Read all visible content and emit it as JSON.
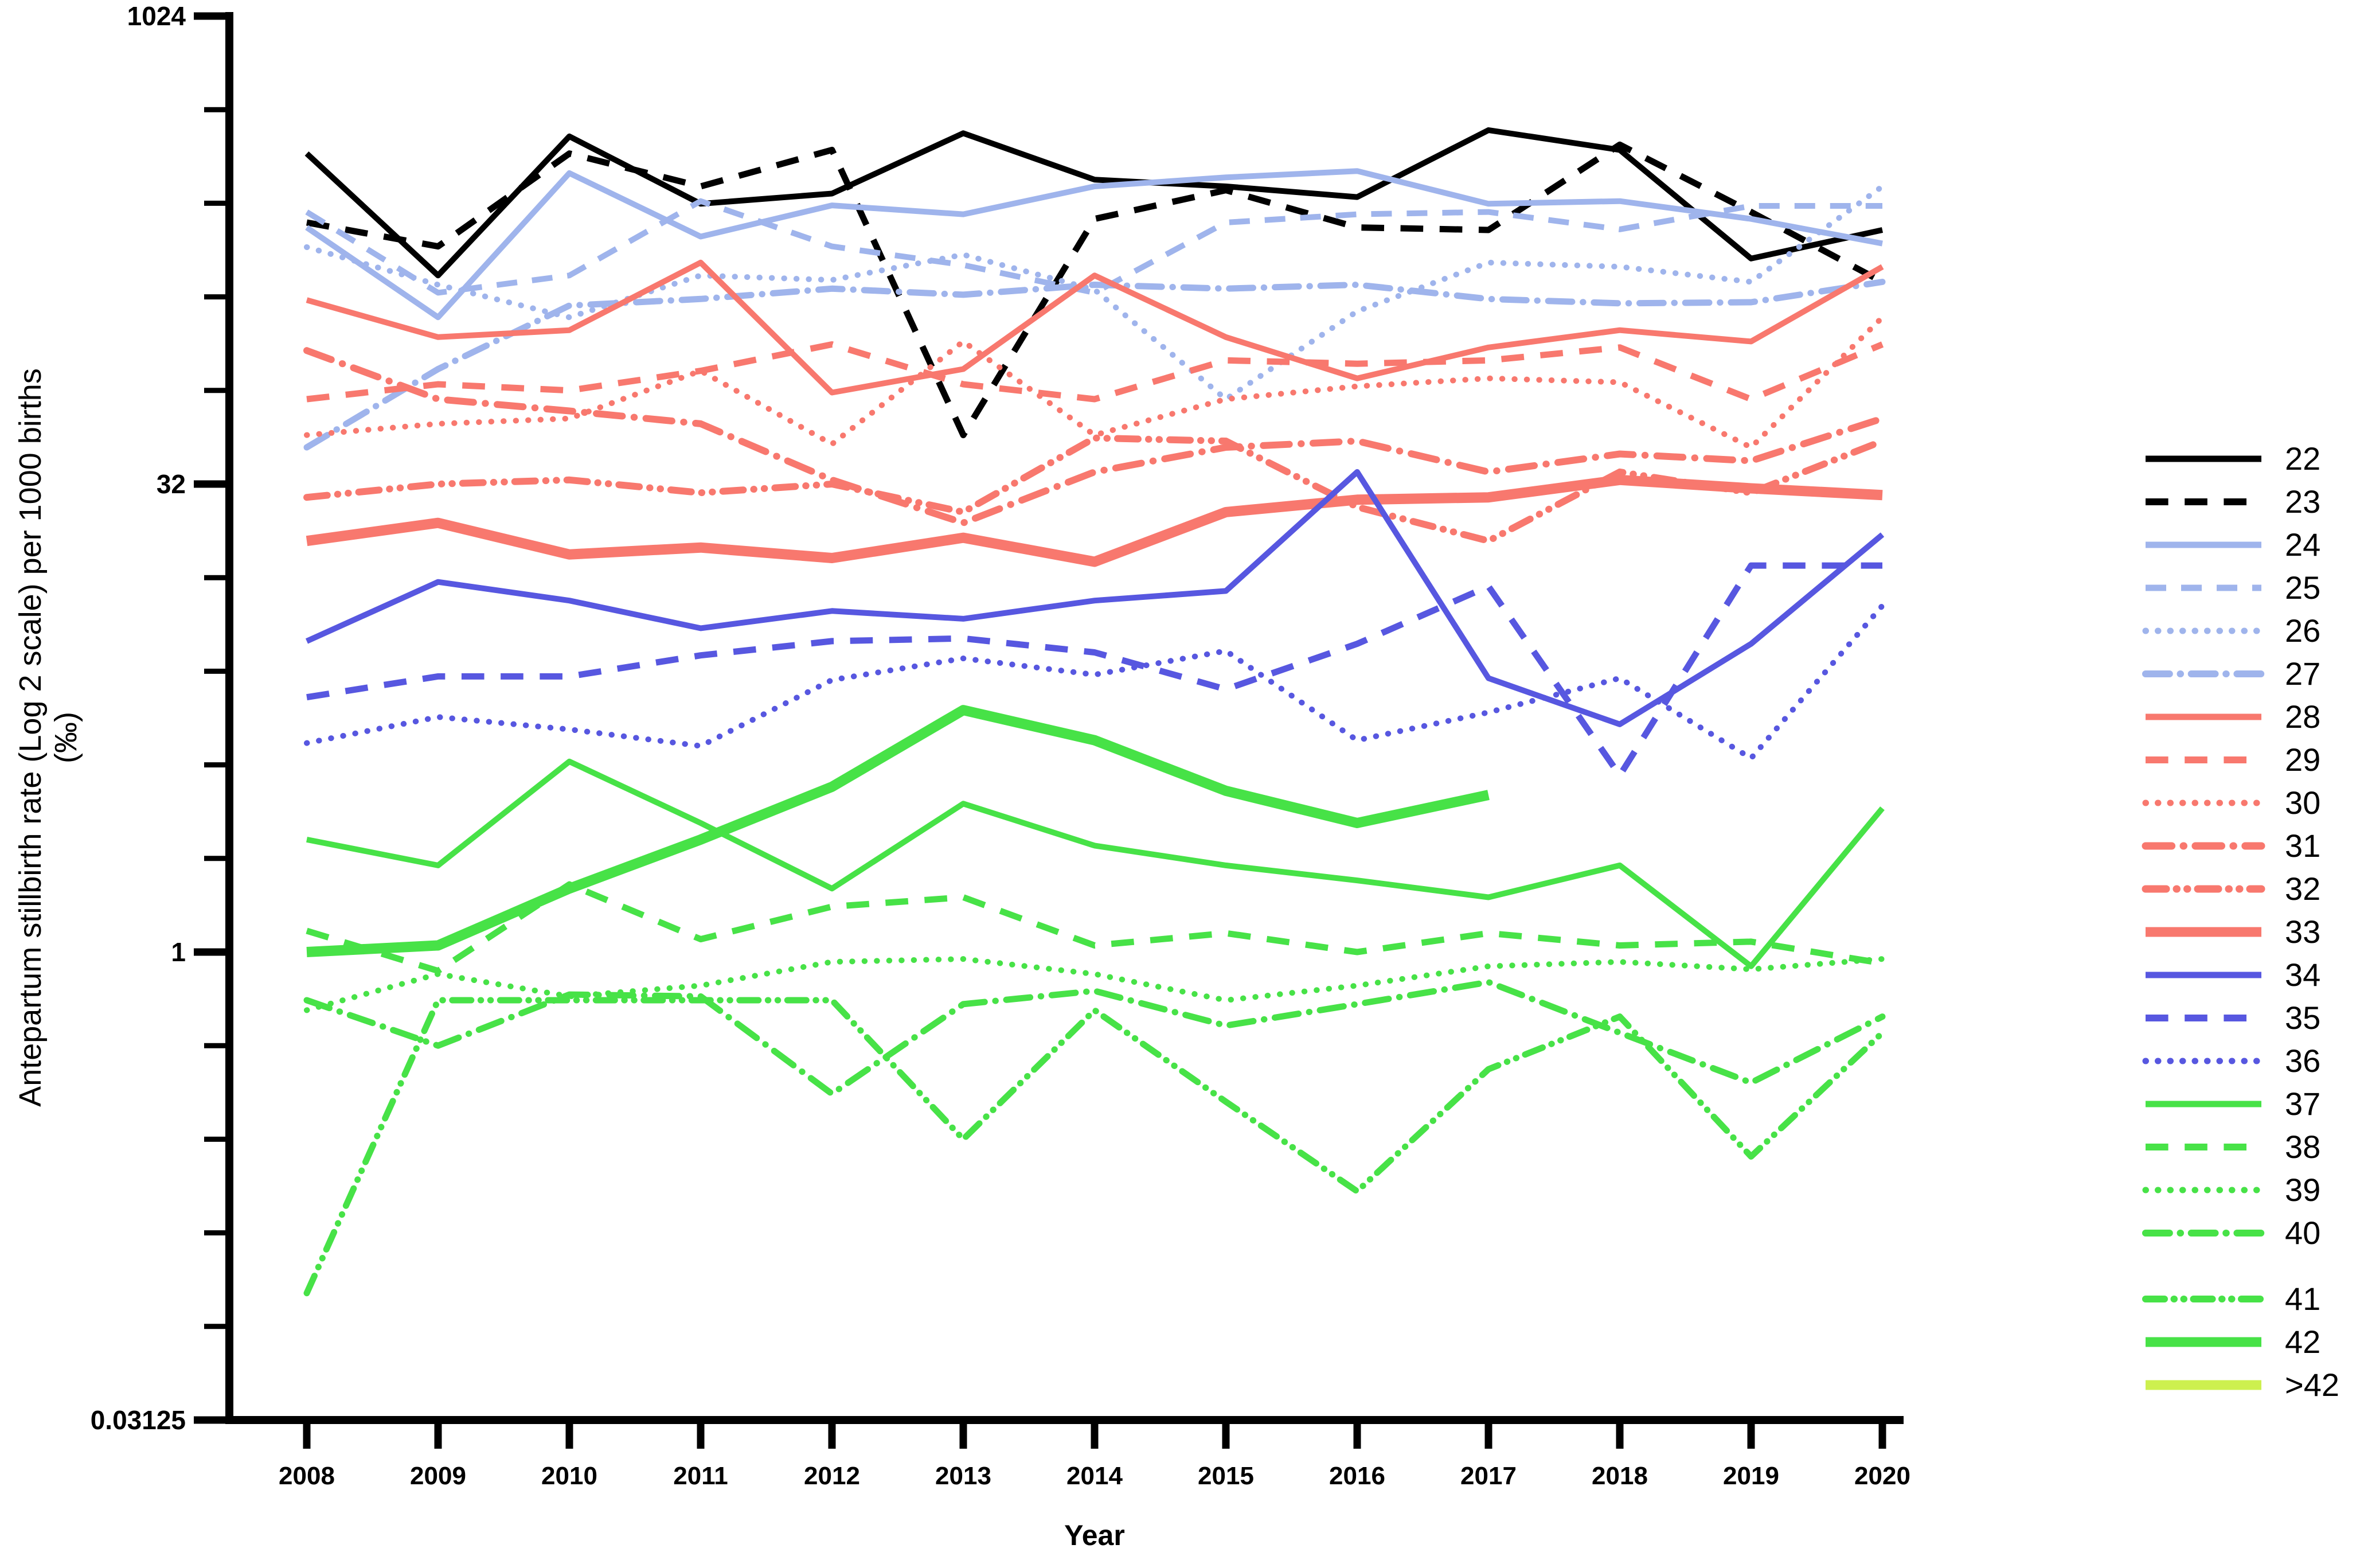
{
  "figure": {
    "y_axis_title": "Antepartum stillbirth rate (Log 2 scale) per 1000 births (‰)",
    "x_axis_title": "Year"
  },
  "chart_data": {
    "type": "line",
    "title": "",
    "xlabel": "Year",
    "ylabel": "Antepartum stillbirth rate (Log 2 scale) per 1000 births (‰)",
    "x": [
      2008,
      2009,
      2010,
      2011,
      2012,
      2013,
      2014,
      2015,
      2016,
      2017,
      2018,
      2019,
      2020
    ],
    "y_scale": "log2",
    "ylim": [
      0.03125,
      1024
    ],
    "y_tick_labels": [
      "1024",
      "32",
      "1",
      "0.03125"
    ],
    "y_tick_values": [
      1024,
      32,
      1,
      0.03125
    ],
    "y_minor_ticks": [
      512,
      256,
      128,
      64,
      16,
      8,
      4,
      2,
      0.5,
      0.25,
      0.125,
      0.0625
    ],
    "grid": false,
    "legend_position": "right",
    "palette": {
      "black": "#000000",
      "light_blue": "#9FB4EC",
      "salmon": "#F8786E",
      "blue": "#5757E0",
      "green": "#47E247",
      "yellow_green": "#CDF04F"
    },
    "series": [
      {
        "name": "22",
        "color": "#000000",
        "style": "solid",
        "width": 10,
        "values": [
          370,
          150,
          420,
          255,
          275,
          430,
          305,
          290,
          268,
          440,
          380,
          170,
          210
        ]
      },
      {
        "name": "23",
        "color": "#000000",
        "style": "dashed",
        "width": 11,
        "values": [
          222,
          186,
          370,
          290,
          380,
          46,
          228,
          282,
          214,
          210,
          395,
          240,
          143
        ]
      },
      {
        "name": "24",
        "color": "#9FB4EC",
        "style": "solid",
        "width": 10,
        "values": [
          214,
          110,
          320,
          200,
          252,
          236,
          290,
          310,
          325,
          255,
          260,
          228,
          190
        ]
      },
      {
        "name": "25",
        "color": "#9FB4EC",
        "style": "dashed",
        "width": 10,
        "values": [
          240,
          132,
          150,
          260,
          186,
          162,
          132,
          222,
          236,
          240,
          211,
          251,
          251
        ]
      },
      {
        "name": "26",
        "color": "#9FB4EC",
        "style": "dotted",
        "width": 10,
        "values": [
          185,
          140,
          110,
          150,
          145,
          175,
          135,
          60,
          115,
          165,
          160,
          143,
          290
        ]
      },
      {
        "name": "27",
        "color": "#9FB4EC",
        "style": "dashdot",
        "width": 11,
        "values": [
          42,
          75,
          120,
          126,
          136,
          130,
          140,
          136,
          140,
          126,
          122,
          123,
          143
        ]
      },
      {
        "name": "28",
        "color": "#F8786E",
        "style": "solid",
        "width": 10,
        "values": [
          125,
          95,
          100,
          165,
          63,
          75,
          150,
          95,
          70,
          88,
          100,
          92,
          160
        ]
      },
      {
        "name": "29",
        "color": "#F8786E",
        "style": "dashed",
        "width": 11,
        "values": [
          60,
          67,
          64,
          74,
          90,
          67,
          60,
          80,
          78,
          80,
          88,
          60,
          90
        ]
      },
      {
        "name": "30",
        "color": "#F8786E",
        "style": "dotted",
        "width": 10,
        "values": [
          46,
          50,
          52,
          74,
          43,
          92,
          46,
          60,
          66,
          70,
          68,
          42,
          110
        ]
      },
      {
        "name": "31",
        "color": "#F8786E",
        "style": "dashdot",
        "width": 12,
        "values": [
          86,
          60,
          55,
          50,
          33,
          24,
          35,
          42,
          44,
          35,
          40,
          38,
          52
        ]
      },
      {
        "name": "32",
        "color": "#F8786E",
        "style": "dashdotdot",
        "width": 12,
        "values": [
          29,
          32,
          33,
          30,
          32,
          26,
          45,
          44,
          27,
          21,
          35,
          30,
          44
        ]
      },
      {
        "name": "33",
        "color": "#F8786E",
        "style": "solid",
        "width": 18,
        "values": [
          21,
          24,
          19,
          20,
          18.5,
          21.5,
          18,
          26,
          28.5,
          29,
          33,
          31,
          29.5
        ]
      },
      {
        "name": "34",
        "color": "#5757E0",
        "style": "solid",
        "width": 10,
        "values": [
          10,
          15.5,
          13.5,
          11,
          12.5,
          11.8,
          13.5,
          14.5,
          35,
          7.6,
          5.4,
          9.8,
          22
        ]
      },
      {
        "name": "35",
        "color": "#5757E0",
        "style": "dashed",
        "width": 11,
        "values": [
          6.6,
          7.7,
          7.7,
          9,
          10,
          10.2,
          9.2,
          7,
          9.8,
          15,
          3.7,
          17.5,
          17.5
        ]
      },
      {
        "name": "36",
        "color": "#5757E0",
        "style": "dotted",
        "width": 10,
        "values": [
          4.7,
          5.7,
          5.2,
          4.6,
          7.5,
          8.8,
          7.8,
          9.3,
          4.8,
          5.9,
          7.6,
          4.2,
          13
        ]
      },
      {
        "name": "37",
        "color": "#47E247",
        "style": "solid",
        "width": 10,
        "values": [
          2.3,
          1.9,
          4.1,
          2.6,
          1.6,
          3.0,
          2.2,
          1.9,
          1.7,
          1.5,
          1.9,
          0.9,
          2.9
        ]
      },
      {
        "name": "38",
        "color": "#47E247",
        "style": "dashed",
        "width": 11,
        "values": [
          1.17,
          0.87,
          1.65,
          1.1,
          1.4,
          1.5,
          1.05,
          1.15,
          1.0,
          1.15,
          1.05,
          1.08,
          0.92
        ]
      },
      {
        "name": "39",
        "color": "#47E247",
        "style": "dotted",
        "width": 10,
        "values": [
          0.65,
          0.85,
          0.72,
          0.78,
          0.93,
          0.95,
          0.85,
          0.7,
          0.78,
          0.9,
          0.93,
          0.88,
          0.95
        ]
      },
      {
        "name": "40",
        "color": "#47E247",
        "style": "dashdot",
        "width": 11,
        "values": [
          0.7,
          0.5,
          0.73,
          0.72,
          0.35,
          0.68,
          0.75,
          0.58,
          0.68,
          0.8,
          0.55,
          0.38,
          0.62
        ]
      },
      {
        "name": "41",
        "color": "#47E247",
        "style": "dashdotdot",
        "width": 11,
        "values": [
          0.08,
          0.7,
          0.7,
          0.7,
          0.7,
          0.25,
          0.65,
          0.33,
          0.17,
          0.42,
          0.62,
          0.22,
          0.55
        ]
      },
      {
        "name": "42",
        "color": "#47E247",
        "style": "solid",
        "width": 18,
        "values": [
          1.0,
          1.05,
          1.6,
          2.3,
          3.4,
          6.0,
          4.8,
          3.3,
          2.6,
          3.2,
          null,
          null,
          null
        ]
      },
      {
        "name": ">42",
        "color": "#CDF04F",
        "style": "solid",
        "width": 16,
        "values": [
          null,
          null,
          null,
          null,
          null,
          null,
          null,
          null,
          null,
          null,
          null,
          null,
          null
        ]
      }
    ]
  }
}
